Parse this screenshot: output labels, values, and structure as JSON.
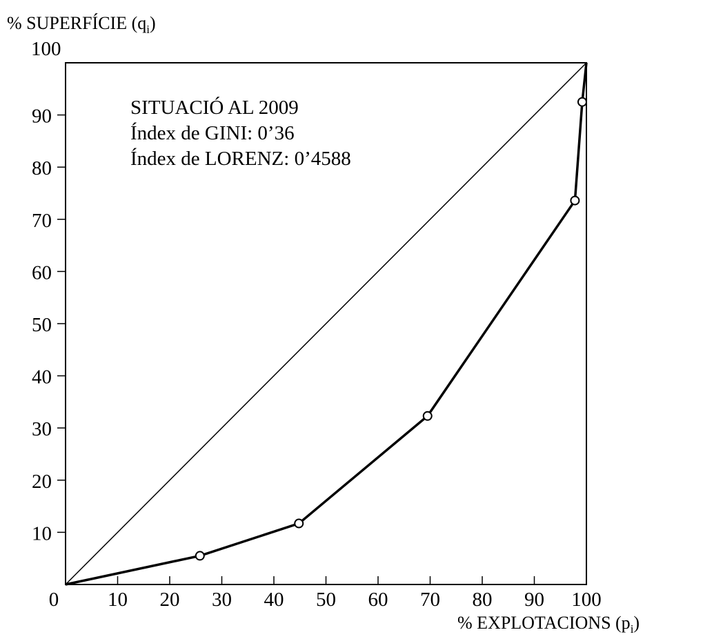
{
  "chart_data": {
    "type": "line",
    "ylabel_main": "% SUPERFÍCIE (q",
    "ylabel_sub": "i",
    "ylabel_close": ")",
    "xlabel_main": "% EXPLOTACIONS (p",
    "xlabel_sub": "i",
    "xlabel_close": ")",
    "xlim": [
      0,
      100
    ],
    "ylim": [
      0,
      100
    ],
    "x_ticks": [
      0,
      10,
      20,
      30,
      40,
      50,
      60,
      70,
      80,
      90,
      100
    ],
    "y_ticks": [
      0,
      10,
      20,
      30,
      40,
      50,
      60,
      70,
      80,
      90,
      100
    ],
    "x_tick_labels": [
      "0",
      "10",
      "20",
      "30",
      "40",
      "50",
      "60",
      "70",
      "80",
      "90",
      "100"
    ],
    "y_tick_labels": [
      "0",
      "10",
      "20",
      "30",
      "40",
      "50",
      "60",
      "70",
      "80",
      "90",
      "100"
    ],
    "grid": false,
    "annotations": [
      "SITUACIÓ AL 2009",
      "Índex de GINI: 0’36",
      "Índex de LORENZ: 0’4588"
    ],
    "equality_line": {
      "x": [
        0,
        100
      ],
      "y": [
        0,
        100
      ]
    },
    "series": [
      {
        "x": [
          0,
          25.8,
          44.8,
          69.5,
          97.8,
          99.2,
          100
        ],
        "y": [
          0,
          5.5,
          11.7,
          32.3,
          73.6,
          92.5,
          100
        ],
        "markers": [
          false,
          true,
          true,
          true,
          true,
          true,
          false
        ],
        "color": "#000000"
      }
    ]
  }
}
